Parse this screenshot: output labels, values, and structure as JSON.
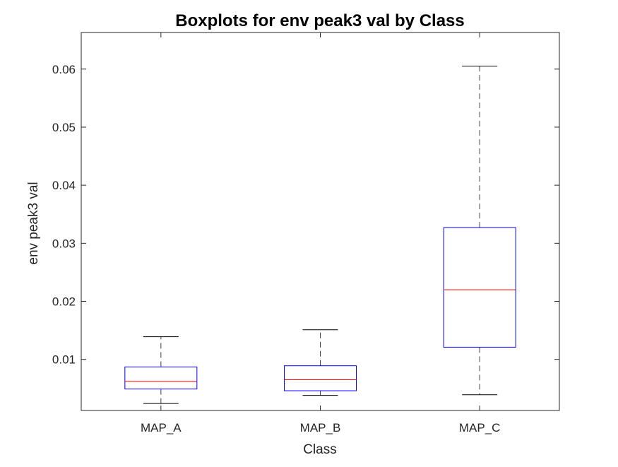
{
  "chart_data": {
    "type": "boxplot",
    "title": "Boxplots for env peak3 val by Class",
    "xlabel": "Class",
    "ylabel": "env peak3 val",
    "categories": [
      "MAP_A",
      "MAP_B",
      "MAP_C"
    ],
    "boxes": [
      {
        "category": "MAP_A",
        "whisker_low": 0.0024,
        "q1": 0.0049,
        "median": 0.0062,
        "q3": 0.0087,
        "whisker_high": 0.0139
      },
      {
        "category": "MAP_B",
        "whisker_low": 0.0038,
        "q1": 0.0046,
        "median": 0.0065,
        "q3": 0.0089,
        "whisker_high": 0.0151
      },
      {
        "category": "MAP_C",
        "whisker_low": 0.0039,
        "q1": 0.0121,
        "median": 0.022,
        "q3": 0.0327,
        "whisker_high": 0.0605
      }
    ],
    "ylim": [
      0.0012,
      0.0663
    ],
    "yticks": [
      0.01,
      0.02,
      0.03,
      0.04,
      0.05,
      0.06
    ],
    "ytick_labels": [
      "0.01",
      "0.02",
      "0.03",
      "0.04",
      "0.05",
      "0.06"
    ],
    "grid": false,
    "colors": {
      "box": "#0000ff",
      "median": "#ff0000",
      "whisker": "#000000",
      "axes": "#262626"
    }
  }
}
